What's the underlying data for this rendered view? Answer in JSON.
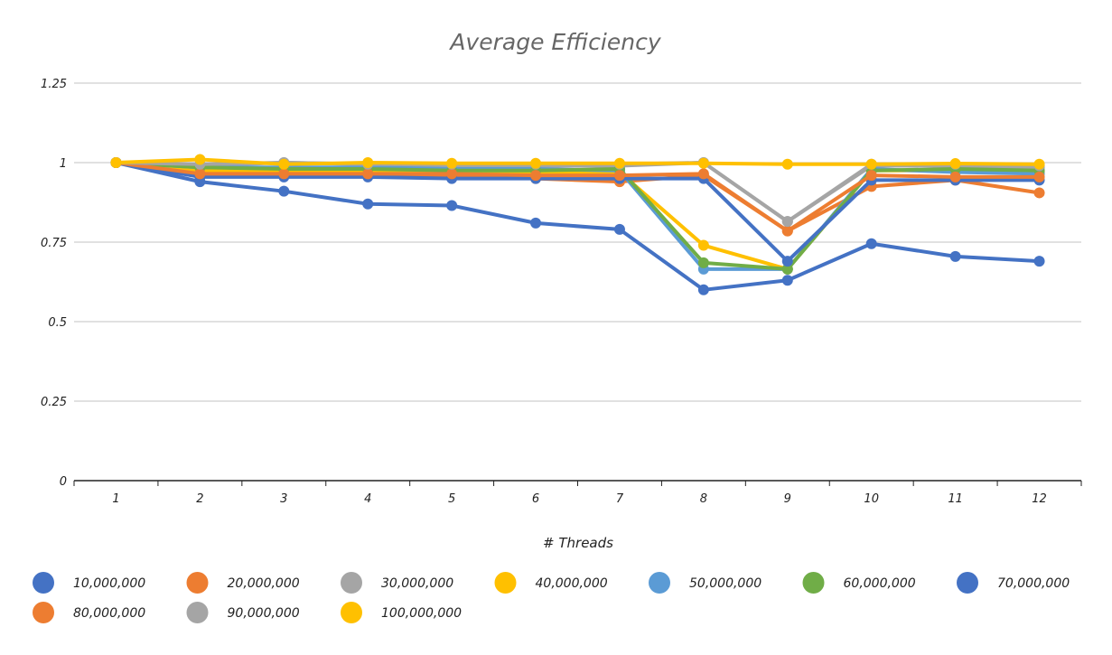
{
  "chart_data": {
    "type": "line",
    "title": "Average Efficiency",
    "xlabel": "# Threads",
    "ylabel": "",
    "x": [
      1,
      2,
      3,
      4,
      5,
      6,
      7,
      8,
      9,
      10,
      11,
      12
    ],
    "x_tick_labels": [
      "1",
      "2",
      "3",
      "4",
      "5",
      "6",
      "7",
      "8",
      "9",
      "10",
      "11",
      "12"
    ],
    "ylim": [
      0,
      1.25
    ],
    "y_ticks": [
      0,
      0.25,
      0.5,
      0.75,
      1,
      1.25
    ],
    "y_tick_labels": [
      "0",
      "0.25",
      "0.5",
      "0.75",
      "1",
      "1.25"
    ],
    "grid": true,
    "legend_position": "bottom",
    "series": [
      {
        "name": "10,000,000",
        "color": "#4472C4",
        "values": [
          1.0,
          0.94,
          0.91,
          0.87,
          0.865,
          0.81,
          0.79,
          0.6,
          0.63,
          0.745,
          0.705,
          0.69
        ]
      },
      {
        "name": "20,000,000",
        "color": "#ED7D31",
        "values": [
          1.0,
          0.965,
          0.96,
          0.96,
          0.955,
          0.95,
          0.94,
          0.96,
          0.785,
          0.925,
          0.945,
          0.905
        ]
      },
      {
        "name": "30,000,000",
        "color": "#A5A5A5",
        "values": [
          1.0,
          0.99,
          1.0,
          0.995,
          0.99,
          0.99,
          0.99,
          1.0,
          0.815,
          0.99,
          0.99,
          0.985
        ]
      },
      {
        "name": "40,000,000",
        "color": "#FFC000",
        "values": [
          1.0,
          0.975,
          0.975,
          0.975,
          0.97,
          0.97,
          0.97,
          0.74,
          0.665,
          0.975,
          0.975,
          0.97
        ]
      },
      {
        "name": "50,000,000",
        "color": "#5B9BD5",
        "values": [
          1.0,
          0.985,
          0.985,
          0.985,
          0.98,
          0.98,
          0.975,
          0.665,
          0.665,
          0.98,
          0.97,
          0.965
        ]
      },
      {
        "name": "60,000,000",
        "color": "#70AD47",
        "values": [
          1.0,
          0.985,
          0.98,
          0.98,
          0.975,
          0.975,
          0.98,
          0.685,
          0.665,
          0.975,
          0.98,
          0.975
        ]
      },
      {
        "name": "70,000,000",
        "color": "#4472C4",
        "values": [
          1.0,
          0.955,
          0.955,
          0.955,
          0.95,
          0.95,
          0.95,
          0.95,
          0.69,
          0.945,
          0.945,
          0.945
        ]
      },
      {
        "name": "80,000,000",
        "color": "#ED7D31",
        "values": [
          1.0,
          0.965,
          0.965,
          0.965,
          0.965,
          0.96,
          0.96,
          0.965,
          0.785,
          0.96,
          0.955,
          0.955
        ]
      },
      {
        "name": "90,000,000",
        "color": "#A5A5A5",
        "values": [
          1.0,
          0.995,
          1.0,
          0.995,
          0.995,
          0.995,
          0.995,
          1.0,
          0.815,
          0.995,
          0.995,
          0.99
        ]
      },
      {
        "name": "100,000,000",
        "color": "#FFC000",
        "values": [
          1.0,
          1.01,
          0.995,
          1.0,
          0.998,
          0.998,
          0.998,
          0.998,
          0.995,
          0.995,
          0.997,
          0.995
        ]
      }
    ],
    "legend_rows": [
      [
        "10,000,000",
        "20,000,000",
        "30,000,000",
        "40,000,000",
        "50,000,000",
        "60,000,000",
        "70,000,000"
      ],
      [
        "80,000,000",
        "90,000,000",
        "100,000,000"
      ]
    ]
  }
}
